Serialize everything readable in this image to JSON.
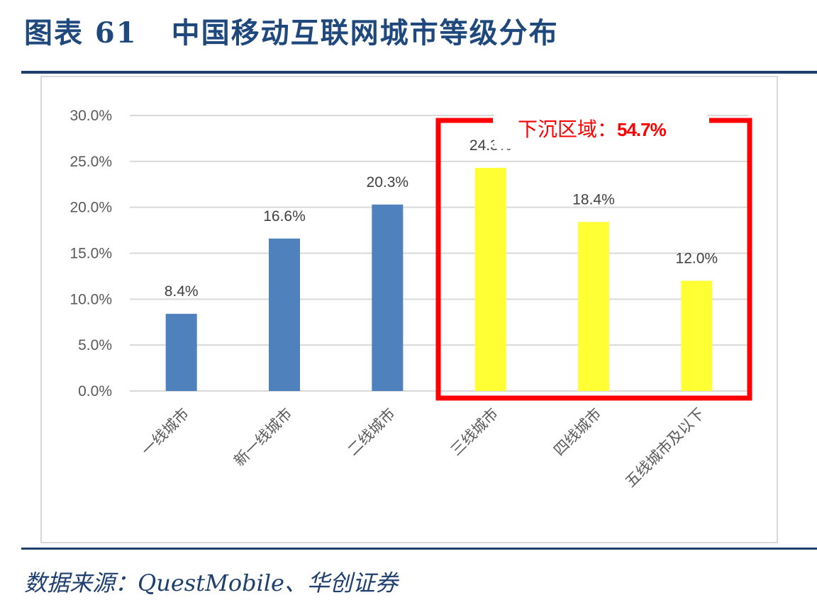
{
  "header": {
    "figure_label": "图表 61",
    "title": "中国移动互联网城市等级分布"
  },
  "source": "数据来源：QuestMobile、华创证券",
  "annotation": {
    "label": "下沉区域：",
    "value": "54.7%",
    "color": "#ff0000"
  },
  "chart_data": {
    "type": "bar",
    "categories": [
      "一线城市",
      "新一线城市",
      "二线城市",
      "三线城市",
      "四线城市",
      "五线城市及以下"
    ],
    "values": [
      8.4,
      16.6,
      20.3,
      24.3,
      18.4,
      12.0
    ],
    "data_labels": [
      "8.4%",
      "16.6%",
      "20.3%",
      "24.3%",
      "18.4%",
      "12.0%"
    ],
    "bar_colors": [
      "#4f81bd",
      "#4f81bd",
      "#4f81bd",
      "#ffff33",
      "#ffff33",
      "#ffff33"
    ],
    "ylim": [
      0,
      30
    ],
    "yticks": [
      "0.0%",
      "5.0%",
      "10.0%",
      "15.0%",
      "20.0%",
      "25.0%",
      "30.0%"
    ],
    "grid": true,
    "xlabel": "",
    "ylabel": "",
    "title": ""
  }
}
